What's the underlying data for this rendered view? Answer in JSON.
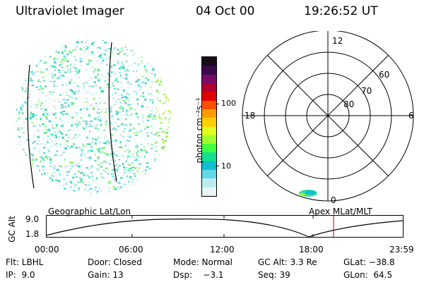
{
  "header": {
    "instrument": "Ultraviolet Imager",
    "date": "04 Oct 00",
    "time": "19:26:52 UT"
  },
  "colorbar": {
    "label": "photon cm⁻²s⁻¹",
    "ticks": [
      "100",
      "10"
    ],
    "colors": [
      "#1a0a1a",
      "#3a0a4a",
      "#7a0a6a",
      "#b00030",
      "#e00000",
      "#ff5000",
      "#ff9a00",
      "#ffd000",
      "#e0ff20",
      "#a0ff30",
      "#40ff40",
      "#10e090",
      "#10c0d0",
      "#60d8e8",
      "#b8ecf0",
      "#e8f4f6"
    ]
  },
  "polar_plot": {
    "mlt_labels": {
      "top": "12",
      "left": "18",
      "right": "6",
      "bottom": "0"
    },
    "lat_labels": [
      "60",
      "70",
      "80"
    ]
  },
  "timeline": {
    "ylabel": "GC Alt",
    "yticks": [
      "9.0",
      "1.8"
    ],
    "left_label": "Geographic Lat/Lon",
    "right_label": "Apex MLat/MLT",
    "xticks": [
      "00:00",
      "06:00",
      "12:00",
      "18:00",
      "23:59"
    ],
    "current_marker_color": "#c00000"
  },
  "info": {
    "row1": [
      "Flt: LBHL",
      "Door: Closed",
      "Mode: Normal",
      "GC Alt: 3.3 Re",
      "GLat: −38.8"
    ],
    "row2": [
      "IP:  9.0",
      "Gain: 13",
      "Dsp:    −3.1",
      "Seq: 39",
      "GLon:  64.5"
    ]
  }
}
